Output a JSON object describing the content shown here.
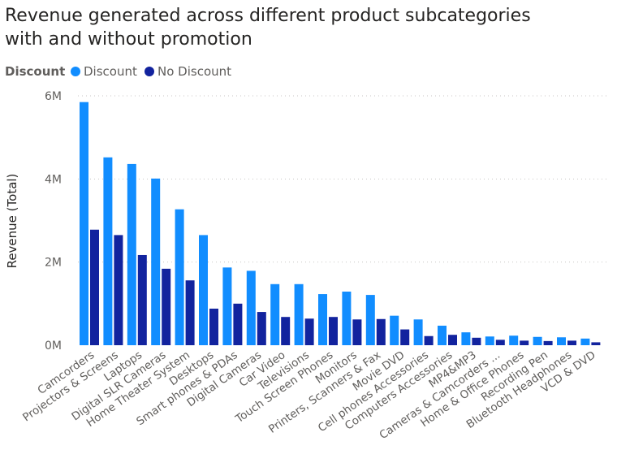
{
  "chart_data": {
    "type": "bar",
    "title_lines": [
      "Revenue generated across different product subcategories",
      "with and without promotion"
    ],
    "legend_title": "Discount",
    "legend_position": "top-left",
    "ylabel": "Revenue (Total)",
    "xlabel": "",
    "ylim": [
      0,
      6000000
    ],
    "yticks": [
      {
        "value": 0,
        "label": "0M"
      },
      {
        "value": 2000000,
        "label": "2M"
      },
      {
        "value": 4000000,
        "label": "4M"
      },
      {
        "value": 6000000,
        "label": "6M"
      }
    ],
    "grid": true,
    "categories": [
      "Camcorders",
      "Projectors & Screens",
      "Laptops",
      "Digital SLR Cameras",
      "Home Theater System",
      "Desktops",
      "Smart phones & PDAs",
      "Digital Cameras",
      "Car Video",
      "Televisions",
      "Touch Screen Phones",
      "Monitors",
      "Printers, Scanners & Fax",
      "Movie DVD",
      "Cell phones Accessories",
      "Computers Accessories",
      "MP4&MP3",
      "Cameras & Camcorders ...",
      "Home & Office Phones",
      "Recording Pen",
      "Bluetooth Headphones",
      "VCD & DVD"
    ],
    "series": [
      {
        "name": "Discount",
        "color": "#118dff",
        "values": [
          5850000,
          4520000,
          4360000,
          4010000,
          3270000,
          2650000,
          1870000,
          1790000,
          1470000,
          1470000,
          1230000,
          1290000,
          1210000,
          710000,
          620000,
          470000,
          310000,
          210000,
          230000,
          200000,
          190000,
          160000
        ]
      },
      {
        "name": "No Discount",
        "color": "#12239e",
        "values": [
          2780000,
          2650000,
          2170000,
          1840000,
          1560000,
          880000,
          1000000,
          800000,
          680000,
          640000,
          680000,
          620000,
          630000,
          380000,
          220000,
          250000,
          180000,
          130000,
          110000,
          100000,
          110000,
          70000
        ]
      }
    ]
  }
}
